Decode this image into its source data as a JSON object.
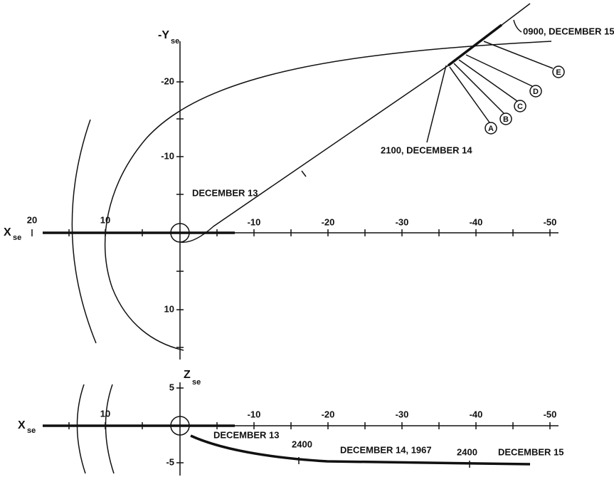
{
  "top_plot": {
    "x_axis_label": "X",
    "x_axis_subscript": "se",
    "y_axis_label": "-Y",
    "y_axis_subscript": "se",
    "x_tick_labels": [
      "20",
      "10",
      "-10",
      "-20",
      "-30",
      "-40",
      "-50"
    ],
    "y_tick_labels": [
      "-20",
      "-10",
      "10"
    ],
    "annotations": [
      "DECEMBER 13",
      "2100, DECEMBER 14",
      "0900, DECEMBER 15"
    ],
    "markers": [
      "A",
      "B",
      "C",
      "D",
      "E"
    ]
  },
  "bottom_plot": {
    "x_axis_label": "X",
    "x_axis_subscript": "se",
    "z_axis_label": "Z",
    "z_axis_subscript": "se",
    "x_tick_labels": [
      "10",
      "-10",
      "-20",
      "-30",
      "-40",
      "-50"
    ],
    "z_tick_labels": [
      "5",
      "-5"
    ],
    "annotations": [
      "DECEMBER 13",
      "2400",
      "DECEMBER 14, 1967",
      "2400",
      "DECEMBER 15"
    ]
  }
}
